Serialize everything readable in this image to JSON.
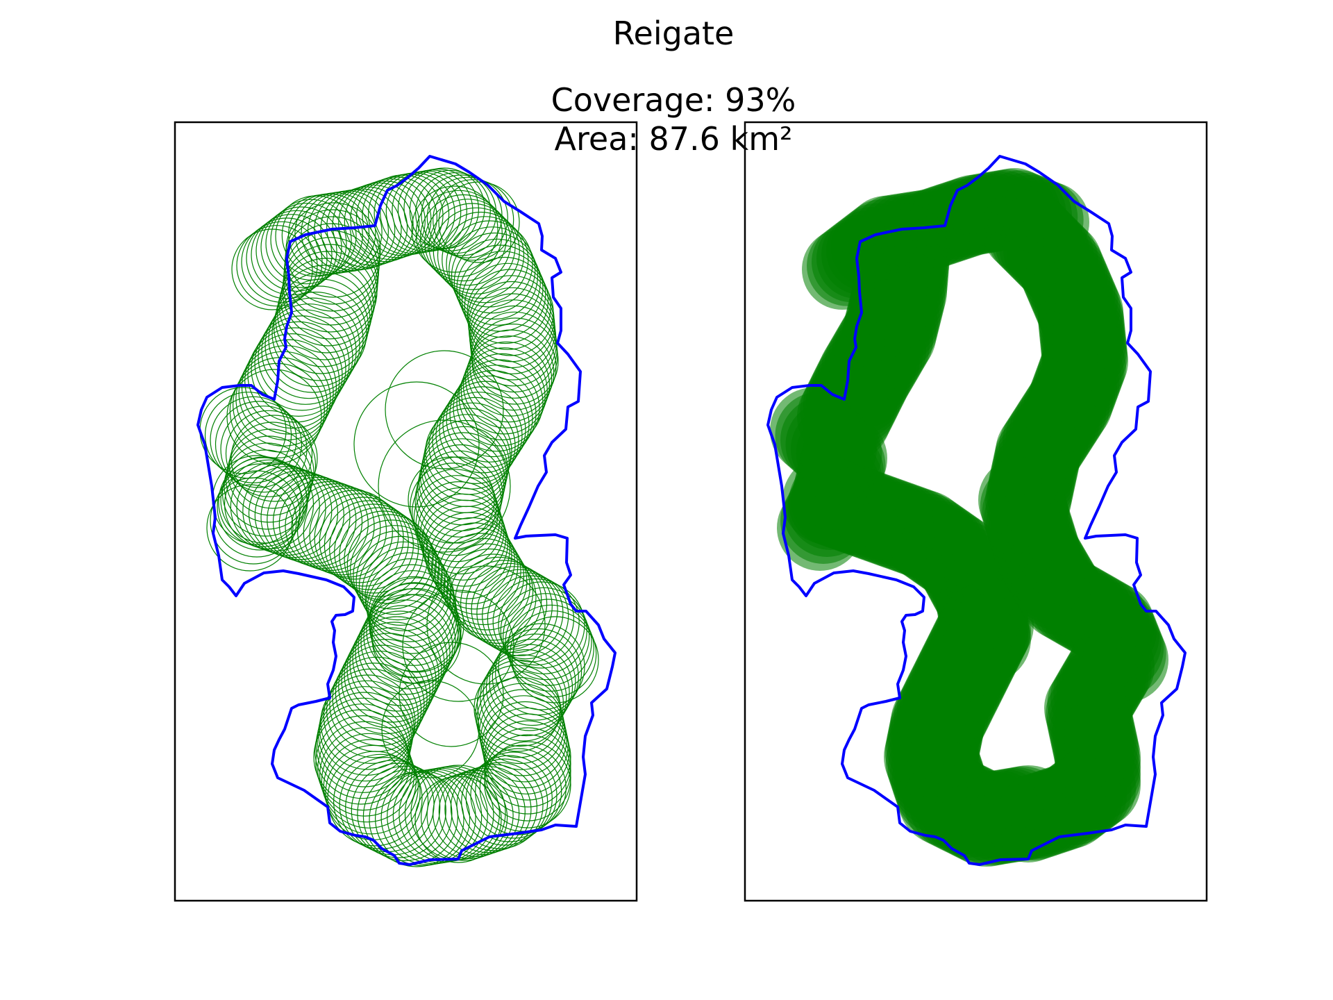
{
  "figure": {
    "title": "Reigate",
    "coverage_text": "Coverage: 93%",
    "area_text": "Area: 87.6 km²"
  },
  "colors": {
    "boundary": "#0000ff",
    "circles": "#008000",
    "frame": "#000000",
    "background": "#ffffff"
  },
  "panels": [
    {
      "name": "outline-circles",
      "fill_style": "outline"
    },
    {
      "name": "filled-circles",
      "fill_style": "filled"
    }
  ]
}
